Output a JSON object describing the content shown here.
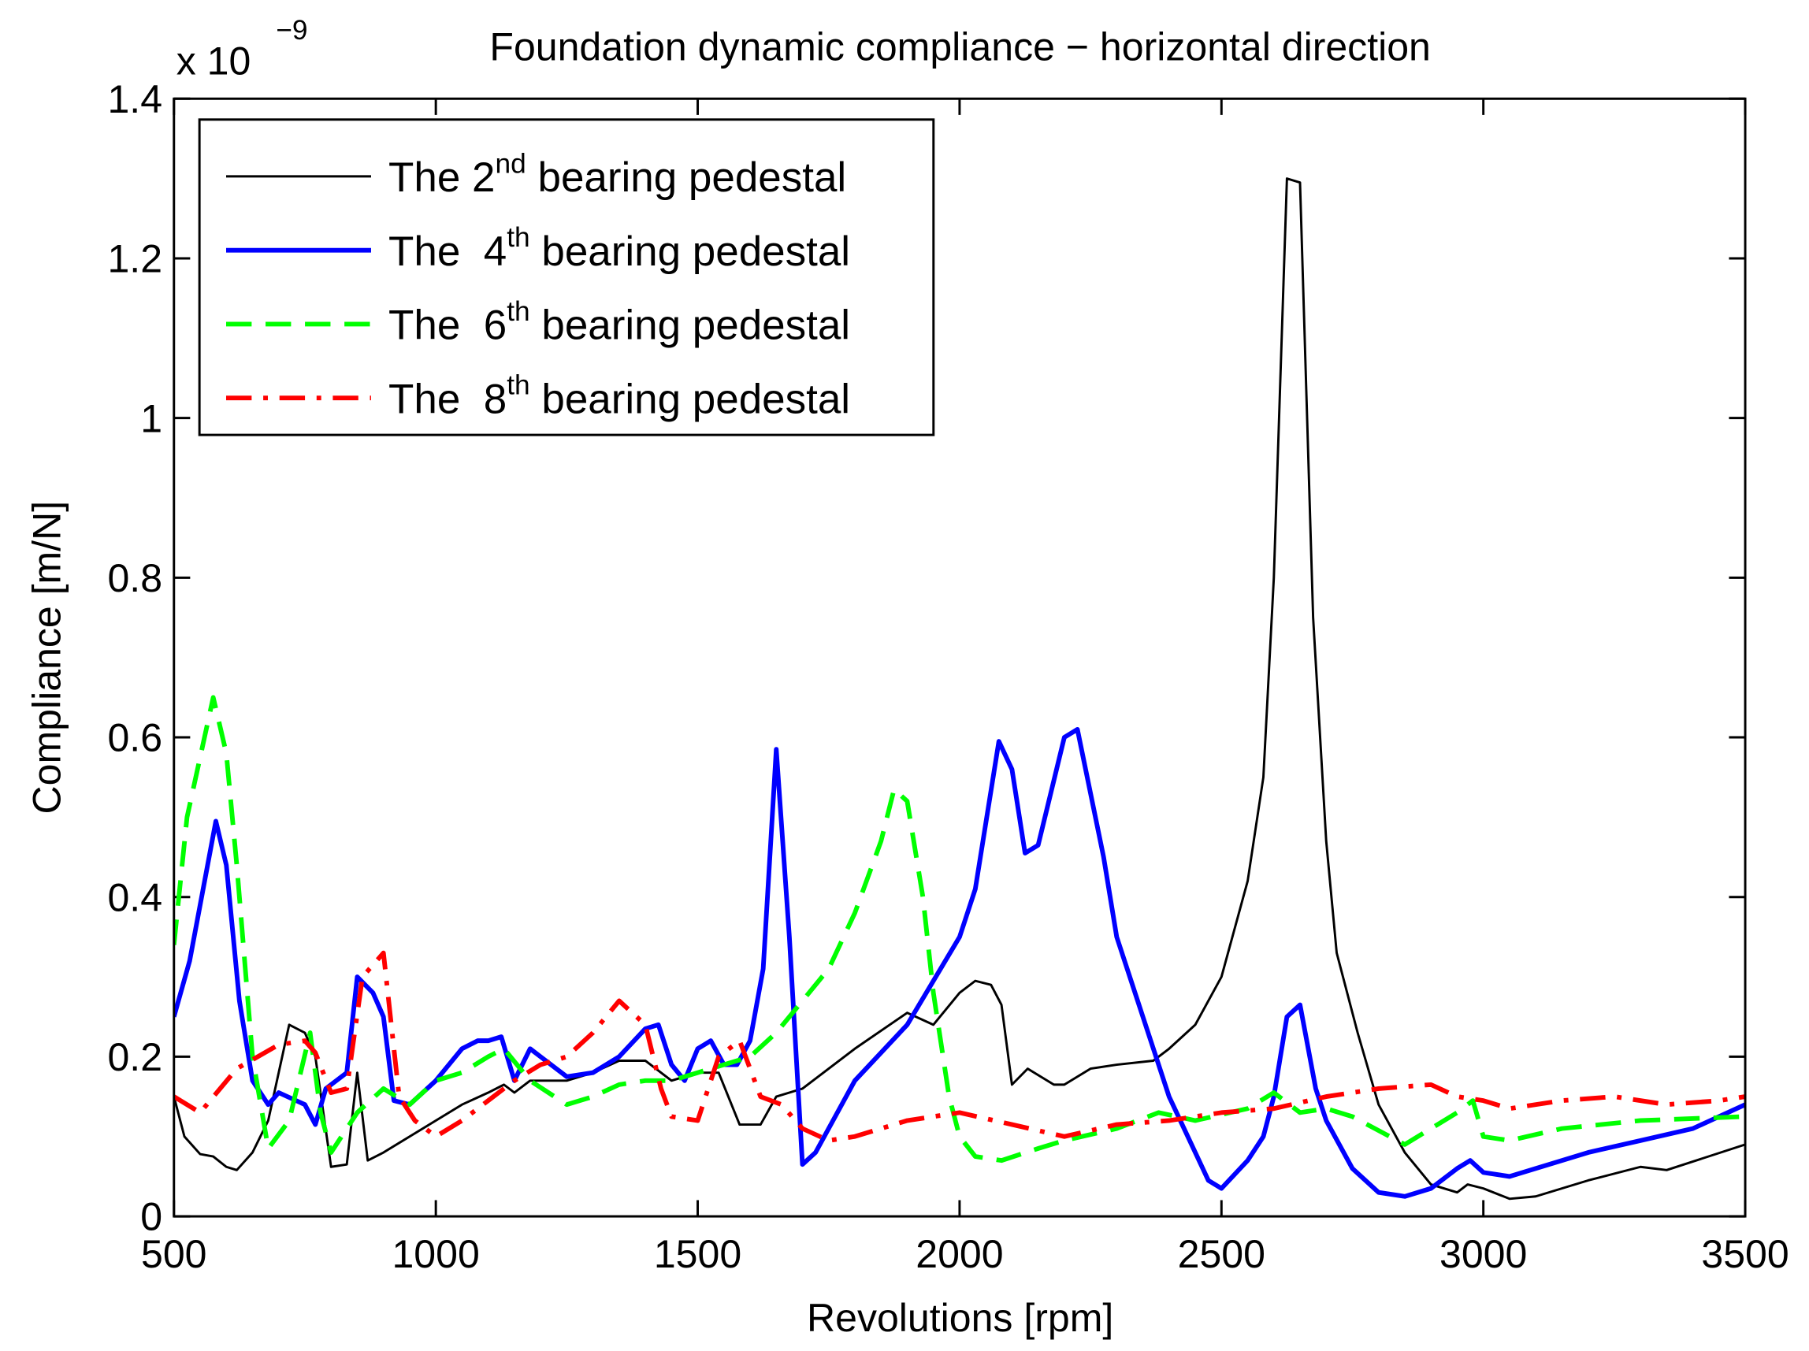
{
  "chart_data": {
    "type": "line",
    "title": "Foundation dynamic compliance − horizontal direction",
    "y_multiplier": {
      "base": "x 10",
      "exponent": "−9"
    },
    "x_label": "Revolutions [rpm]",
    "y_label": "Compliance [m/N]",
    "xlim": [
      500,
      3500
    ],
    "xticks": [
      500,
      1000,
      1500,
      2000,
      2500,
      3000,
      3500
    ],
    "ylim": [
      0,
      1.4
    ],
    "yticks": [
      0,
      0.2,
      0.4,
      0.6,
      0.8,
      1,
      1.2,
      1.4
    ],
    "legend": "upper left",
    "grid": false,
    "series": [
      {
        "name": "The 2nd bearing pedestal",
        "color": "#000000",
        "line_style": "solid",
        "x": [
          500,
          520,
          550,
          575,
          600,
          620,
          650,
          680,
          720,
          750,
          770,
          800,
          830,
          850,
          870,
          900,
          950,
          1000,
          1050,
          1100,
          1130,
          1150,
          1180,
          1250,
          1300,
          1350,
          1400,
          1450,
          1500,
          1540,
          1580,
          1620,
          1650,
          1700,
          1800,
          1900,
          1950,
          2000,
          2030,
          2060,
          2080,
          2100,
          2130,
          2180,
          2200,
          2250,
          2300,
          2370,
          2400,
          2450,
          2500,
          2550,
          2580,
          2600,
          2625,
          2650,
          2675,
          2700,
          2720,
          2760,
          2800,
          2850,
          2900,
          2950,
          2970,
          3000,
          3050,
          3100,
          3200,
          3300,
          3350,
          3500
        ],
        "values": [
          0.15,
          0.1,
          0.078,
          0.075,
          0.062,
          0.058,
          0.08,
          0.12,
          0.24,
          0.23,
          0.2,
          0.062,
          0.065,
          0.18,
          0.07,
          0.08,
          0.1,
          0.12,
          0.14,
          0.155,
          0.165,
          0.155,
          0.17,
          0.17,
          0.18,
          0.195,
          0.195,
          0.17,
          0.18,
          0.18,
          0.115,
          0.115,
          0.15,
          0.16,
          0.21,
          0.255,
          0.24,
          0.28,
          0.295,
          0.29,
          0.265,
          0.165,
          0.185,
          0.165,
          0.165,
          0.185,
          0.19,
          0.195,
          0.21,
          0.24,
          0.3,
          0.42,
          0.55,
          0.8,
          1.3,
          1.295,
          0.75,
          0.47,
          0.33,
          0.23,
          0.14,
          0.08,
          0.04,
          0.03,
          0.04,
          0.035,
          0.022,
          0.025,
          0.045,
          0.062,
          0.058,
          0.09
        ]
      },
      {
        "name": "The  4th bearing pedestal",
        "color": "#0000ff",
        "line_style": "solid-bold",
        "x": [
          500,
          530,
          580,
          600,
          625,
          650,
          680,
          700,
          750,
          770,
          790,
          830,
          850,
          880,
          900,
          920,
          950,
          1000,
          1050,
          1080,
          1100,
          1125,
          1150,
          1180,
          1200,
          1250,
          1300,
          1350,
          1400,
          1425,
          1450,
          1475,
          1500,
          1525,
          1550,
          1575,
          1600,
          1625,
          1650,
          1675,
          1700,
          1725,
          1800,
          1900,
          2000,
          2030,
          2075,
          2100,
          2125,
          2150,
          2200,
          2225,
          2275,
          2300,
          2350,
          2400,
          2450,
          2475,
          2500,
          2550,
          2580,
          2600,
          2625,
          2650,
          2680,
          2700,
          2750,
          2800,
          2850,
          2900,
          2950,
          2975,
          3000,
          3050,
          3100,
          3200,
          3300,
          3400,
          3500
        ],
        "values": [
          0.25,
          0.32,
          0.495,
          0.44,
          0.27,
          0.17,
          0.14,
          0.155,
          0.14,
          0.115,
          0.16,
          0.18,
          0.3,
          0.28,
          0.25,
          0.145,
          0.14,
          0.17,
          0.21,
          0.22,
          0.22,
          0.225,
          0.17,
          0.21,
          0.2,
          0.175,
          0.18,
          0.2,
          0.235,
          0.24,
          0.19,
          0.17,
          0.21,
          0.22,
          0.19,
          0.19,
          0.22,
          0.31,
          0.585,
          0.35,
          0.065,
          0.08,
          0.17,
          0.24,
          0.35,
          0.41,
          0.595,
          0.56,
          0.455,
          0.465,
          0.6,
          0.61,
          0.45,
          0.35,
          0.25,
          0.15,
          0.08,
          0.045,
          0.035,
          0.07,
          0.1,
          0.15,
          0.25,
          0.265,
          0.16,
          0.12,
          0.06,
          0.03,
          0.025,
          0.035,
          0.06,
          0.07,
          0.055,
          0.05,
          0.06,
          0.08,
          0.095,
          0.11,
          0.14
        ]
      },
      {
        "name": "The  6th bearing pedestal",
        "color": "#00ff00",
        "line_style": "dashed",
        "x": [
          500,
          525,
          575,
          600,
          620,
          650,
          680,
          720,
          760,
          780,
          800,
          850,
          900,
          950,
          1000,
          1050,
          1100,
          1130,
          1180,
          1250,
          1300,
          1350,
          1400,
          1450,
          1500,
          1550,
          1600,
          1650,
          1700,
          1750,
          1800,
          1850,
          1875,
          1900,
          1930,
          1950,
          1980,
          2000,
          2030,
          2080,
          2150,
          2200,
          2300,
          2380,
          2450,
          2550,
          2600,
          2650,
          2700,
          2750,
          2850,
          2950,
          2980,
          3000,
          3050,
          3150,
          3300,
          3500
        ],
        "values": [
          0.34,
          0.5,
          0.65,
          0.58,
          0.44,
          0.2,
          0.085,
          0.12,
          0.23,
          0.13,
          0.08,
          0.13,
          0.16,
          0.14,
          0.17,
          0.18,
          0.2,
          0.21,
          0.17,
          0.14,
          0.15,
          0.165,
          0.17,
          0.17,
          0.18,
          0.19,
          0.2,
          0.23,
          0.27,
          0.31,
          0.38,
          0.47,
          0.535,
          0.52,
          0.4,
          0.28,
          0.15,
          0.1,
          0.075,
          0.07,
          0.085,
          0.095,
          0.11,
          0.13,
          0.12,
          0.135,
          0.155,
          0.13,
          0.135,
          0.125,
          0.09,
          0.13,
          0.145,
          0.1,
          0.095,
          0.11,
          0.12,
          0.125
        ]
      },
      {
        "name": "The  8th bearing pedestal",
        "color": "#ff0000",
        "line_style": "dash-dot",
        "x": [
          500,
          550,
          620,
          700,
          750,
          770,
          800,
          830,
          860,
          900,
          930,
          960,
          1000,
          1050,
          1100,
          1150,
          1200,
          1250,
          1300,
          1350,
          1400,
          1430,
          1450,
          1500,
          1540,
          1580,
          1620,
          1660,
          1700,
          1750,
          1800,
          1900,
          2000,
          2100,
          2200,
          2300,
          2400,
          2500,
          2600,
          2700,
          2800,
          2900,
          2950,
          3000,
          3050,
          3150,
          3250,
          3350,
          3450,
          3500
        ],
        "values": [
          0.15,
          0.13,
          0.185,
          0.215,
          0.22,
          0.205,
          0.155,
          0.16,
          0.3,
          0.33,
          0.15,
          0.12,
          0.1,
          0.12,
          0.145,
          0.17,
          0.19,
          0.2,
          0.23,
          0.27,
          0.24,
          0.16,
          0.125,
          0.12,
          0.2,
          0.22,
          0.15,
          0.14,
          0.11,
          0.095,
          0.1,
          0.12,
          0.13,
          0.115,
          0.1,
          0.115,
          0.12,
          0.13,
          0.135,
          0.15,
          0.16,
          0.165,
          0.15,
          0.145,
          0.135,
          0.145,
          0.15,
          0.14,
          0.145,
          0.15
        ]
      }
    ]
  }
}
